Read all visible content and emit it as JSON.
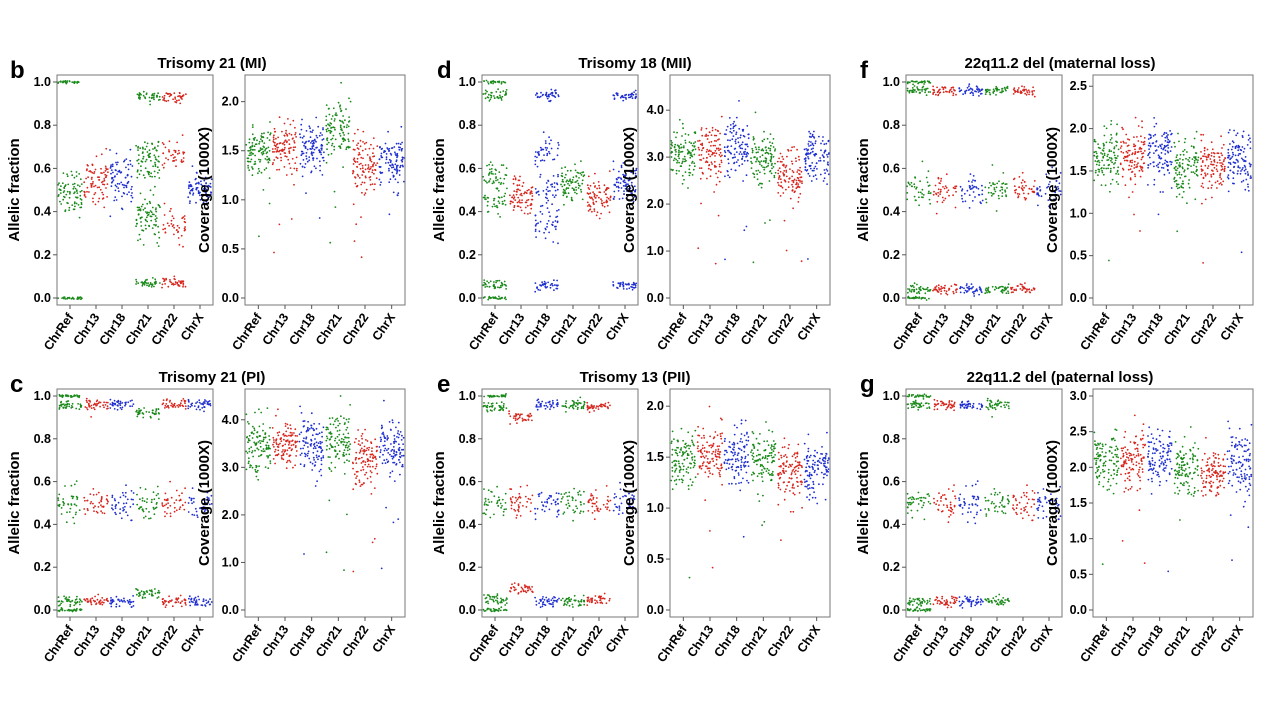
{
  "colors": {
    "red": "#d7261e",
    "blue": "#1f2fd0",
    "green": "#1a8a1a"
  },
  "chart_data": [
    {
      "letter": "b",
      "title": "Trisomy 21 (MI)",
      "categories": [
        "ChrRef",
        "Chr13",
        "Chr18",
        "Chr21",
        "Chr22",
        "ChrX"
      ],
      "category_colors": [
        "green",
        "red",
        "blue",
        "green",
        "red",
        "blue"
      ],
      "allelic": {
        "type": "scatter",
        "ylabel": "Allelic fraction",
        "ylim": [
          0,
          1.0
        ],
        "yticks": [
          "0.0",
          "0.2",
          "0.4",
          "0.6",
          "0.8",
          "1.0"
        ],
        "bands": [
          [
            [
              0.0,
              1.0,
              0.52,
              0.45
            ],
            [
              0.5,
              0.59
            ],
            [
              0.5,
              0.59
            ],
            [
              0.6,
              0.67,
              0.33,
              0.4,
              0.07,
              0.93
            ],
            [
              0.33,
              0.67,
              0.07,
              0.93
            ],
            [
              0.5,
              0.51
            ]
          ]
        ]
      },
      "coverage": {
        "type": "scatter",
        "ylabel": "Coverage (1000X)",
        "ylim": [
          0,
          2.2
        ],
        "yticks": [
          "0.0",
          "0.5",
          "1.0",
          "1.5",
          "2.0"
        ],
        "means": [
          1.5,
          1.52,
          1.52,
          1.7,
          1.35,
          1.38
        ],
        "spread": 0.14
      }
    },
    {
      "letter": "d",
      "title": "Trisomy 18 (MII)",
      "categories": [
        "ChrRef",
        "Chr13",
        "Chr18",
        "Chr21",
        "Chr22",
        "ChrX"
      ],
      "category_colors": [
        "green",
        "red",
        "blue",
        "green",
        "red",
        "blue"
      ],
      "allelic": {
        "type": "scatter",
        "ylabel": "Allelic fraction",
        "ylim": [
          0,
          1.0
        ],
        "yticks": [
          "0.0",
          "0.2",
          "0.4",
          "0.6",
          "0.8",
          "1.0"
        ],
        "bands": [
          [
            [
              0.0,
              1.0,
              0.45,
              0.55,
              0.06,
              0.94
            ],
            [
              0.5,
              0.45
            ],
            [
              0.33,
              0.67,
              0.5,
              0.06,
              0.94
            ],
            [
              0.5,
              0.55
            ],
            [
              0.5,
              0.45
            ],
            [
              0.5,
              0.55,
              0.06,
              0.94
            ]
          ]
        ]
      },
      "coverage": {
        "type": "scatter",
        "ylabel": "Coverage (1000X)",
        "ylim": [
          0,
          4.6
        ],
        "yticks": [
          "0.0",
          "1.0",
          "2.0",
          "3.0",
          "4.0"
        ],
        "means": [
          3.1,
          3.1,
          3.2,
          2.95,
          2.6,
          3.05
        ],
        "spread": 0.28
      }
    },
    {
      "letter": "f",
      "title": "22q11.2 del (maternal loss)",
      "categories": [
        "ChrRef",
        "Chr13",
        "Chr18",
        "Chr21",
        "Chr22",
        "ChrX"
      ],
      "category_colors": [
        "green",
        "red",
        "blue",
        "green",
        "red",
        "blue"
      ],
      "allelic": {
        "type": "scatter",
        "ylabel": "Allelic fraction",
        "ylim": [
          0,
          1.0
        ],
        "yticks": [
          "0.0",
          "0.2",
          "0.4",
          "0.6",
          "0.8",
          "1.0"
        ],
        "bands": [
          [
            [
              0.0,
              1.0,
              0.5,
              0.04,
              0.96
            ],
            [
              0.5,
              0.04,
              0.96
            ],
            [
              0.5,
              0.04,
              0.96
            ],
            [
              0.5,
              0.04,
              0.96
            ],
            [
              0.5,
              0.04,
              0.96
            ],
            [
              0.5
            ]
          ]
        ]
      },
      "coverage": {
        "type": "scatter",
        "ylabel": "Coverage (1000X)",
        "ylim": [
          0,
          2.55
        ],
        "yticks": [
          "0.0",
          "0.5",
          "1.0",
          "1.5",
          "2.0",
          "2.5"
        ],
        "means": [
          1.65,
          1.65,
          1.72,
          1.55,
          1.55,
          1.65
        ],
        "spread": 0.17
      }
    },
    {
      "letter": "c",
      "title": "Trisomy 21 (PI)",
      "categories": [
        "ChrRef",
        "Chr13",
        "Chr18",
        "Chr21",
        "Chr22",
        "ChrX"
      ],
      "category_colors": [
        "green",
        "red",
        "blue",
        "green",
        "red",
        "blue"
      ],
      "allelic": {
        "type": "scatter",
        "ylabel": "Allelic fraction",
        "ylim": [
          0,
          1.0
        ],
        "yticks": [
          "0.0",
          "0.2",
          "0.4",
          "0.6",
          "0.8",
          "1.0"
        ],
        "bands": [
          [
            [
              0.0,
              1.0,
              0.5,
              0.04,
              0.96
            ],
            [
              0.5,
              0.04,
              0.96
            ],
            [
              0.5,
              0.04,
              0.96
            ],
            [
              0.5,
              0.08,
              0.92
            ],
            [
              0.5,
              0.04,
              0.96
            ],
            [
              0.5,
              0.04,
              0.96
            ]
          ]
        ]
      },
      "coverage": {
        "type": "scatter",
        "ylabel": "Coverage (1000X)",
        "ylim": [
          0,
          4.5
        ],
        "yticks": [
          "0.0",
          "1.0",
          "2.0",
          "3.0",
          "4.0"
        ],
        "means": [
          3.45,
          3.5,
          3.45,
          3.55,
          3.15,
          3.4
        ],
        "spread": 0.28
      }
    },
    {
      "letter": "e",
      "title": "Trisomy 13 (PII)",
      "categories": [
        "ChrRef",
        "Chr13",
        "Chr18",
        "Chr21",
        "Chr22",
        "ChrX"
      ],
      "category_colors": [
        "green",
        "red",
        "blue",
        "green",
        "red",
        "blue"
      ],
      "allelic": {
        "type": "scatter",
        "ylabel": "Allelic fraction",
        "ylim": [
          0,
          1.0
        ],
        "yticks": [
          "0.0",
          "0.2",
          "0.4",
          "0.6",
          "0.8",
          "1.0"
        ],
        "bands": [
          [
            [
              0.0,
              1.0,
              0.5,
              0.05,
              0.95
            ],
            [
              0.5,
              0.1,
              0.9
            ],
            [
              0.5,
              0.04,
              0.96
            ],
            [
              0.5,
              0.04,
              0.96
            ],
            [
              0.5,
              0.05,
              0.95
            ],
            [
              0.5
            ]
          ]
        ]
      },
      "coverage": {
        "type": "scatter",
        "ylabel": "Coverage (1000X)",
        "ylim": [
          0,
          2.1
        ],
        "yticks": [
          "0.0",
          "0.5",
          "1.0",
          "1.5",
          "2.0"
        ],
        "means": [
          1.48,
          1.55,
          1.5,
          1.45,
          1.35,
          1.4
        ],
        "spread": 0.14
      }
    },
    {
      "letter": "g",
      "title": "22q11.2 del (paternal loss)",
      "categories": [
        "ChrRef",
        "Chr13",
        "Chr18",
        "Chr21",
        "Chr22",
        "ChrX"
      ],
      "category_colors": [
        "green",
        "red",
        "blue",
        "green",
        "red",
        "blue"
      ],
      "allelic": {
        "type": "scatter",
        "ylabel": "Allelic fraction",
        "ylim": [
          0,
          1.0
        ],
        "yticks": [
          "0.0",
          "0.2",
          "0.4",
          "0.6",
          "0.8",
          "1.0"
        ],
        "bands": [
          [
            [
              0.0,
              1.0,
              0.5,
              0.04,
              0.96
            ],
            [
              0.5,
              0.04,
              0.96
            ],
            [
              0.5,
              0.04,
              0.96
            ],
            [
              0.5,
              0.04,
              0.96
            ],
            [
              0.5
            ],
            [
              0.5
            ]
          ]
        ]
      },
      "coverage": {
        "type": "scatter",
        "ylabel": "Coverage (1000X)",
        "ylim": [
          0,
          3.0
        ],
        "yticks": [
          "0.0",
          "0.5",
          "1.0",
          "1.5",
          "2.0",
          "2.5",
          "3.0"
        ],
        "means": [
          2.1,
          2.1,
          2.15,
          2.0,
          1.9,
          2.05
        ],
        "spread": 0.2
      }
    }
  ]
}
